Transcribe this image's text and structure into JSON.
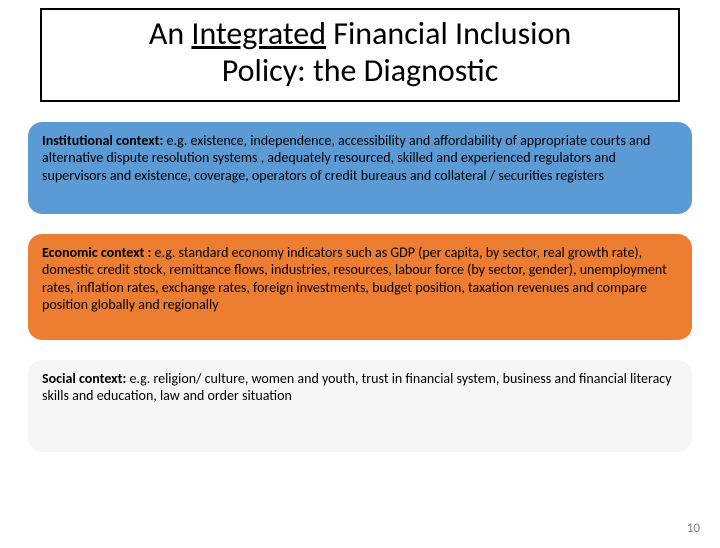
{
  "title": {
    "prefix": "An ",
    "underlined": "Integrated",
    "rest_line1": " Financial Inclusion",
    "line2": "Policy: the Diagnostic",
    "fontsize": 32,
    "border_color": "#000000"
  },
  "cards": [
    {
      "label": "Institutional context:",
      "body": " e.g. existence, independence, accessibility and affordability of appropriate courts and alternative dispute resolution systems , adequately resourced, skilled and experienced regulators and supervisors and existence, coverage, operators of credit bureaus and collateral / securities registers",
      "background_color": "#5b9bd5",
      "text_color": "#000000",
      "min_height": 92
    },
    {
      "label": "Economic context :",
      "body": " e.g. standard economy indicators such as GDP (per capita, by sector, real growth rate), domestic credit stock, remittance flows, industries, resources, labour force (by sector, gender), unemployment rates, inflation rates, exchange rates, foreign investments, budget position, taxation revenues and compare position globally and regionally",
      "background_color": "#ed7d31",
      "text_color": "#000000",
      "min_height": 106
    },
    {
      "label": "Social context:",
      "body": " e.g. religion/ culture, women and youth, trust in financial system, business and financial literacy skills and education, law and order situation",
      "background_color": "#f6f6f6",
      "text_color": "#000000",
      "min_height": 92
    }
  ],
  "layout": {
    "card_radius": 14,
    "card_gap": 20,
    "label_fontsize": 14,
    "body_fontsize": 14
  },
  "page_number": "10",
  "background_color": "#ffffff"
}
